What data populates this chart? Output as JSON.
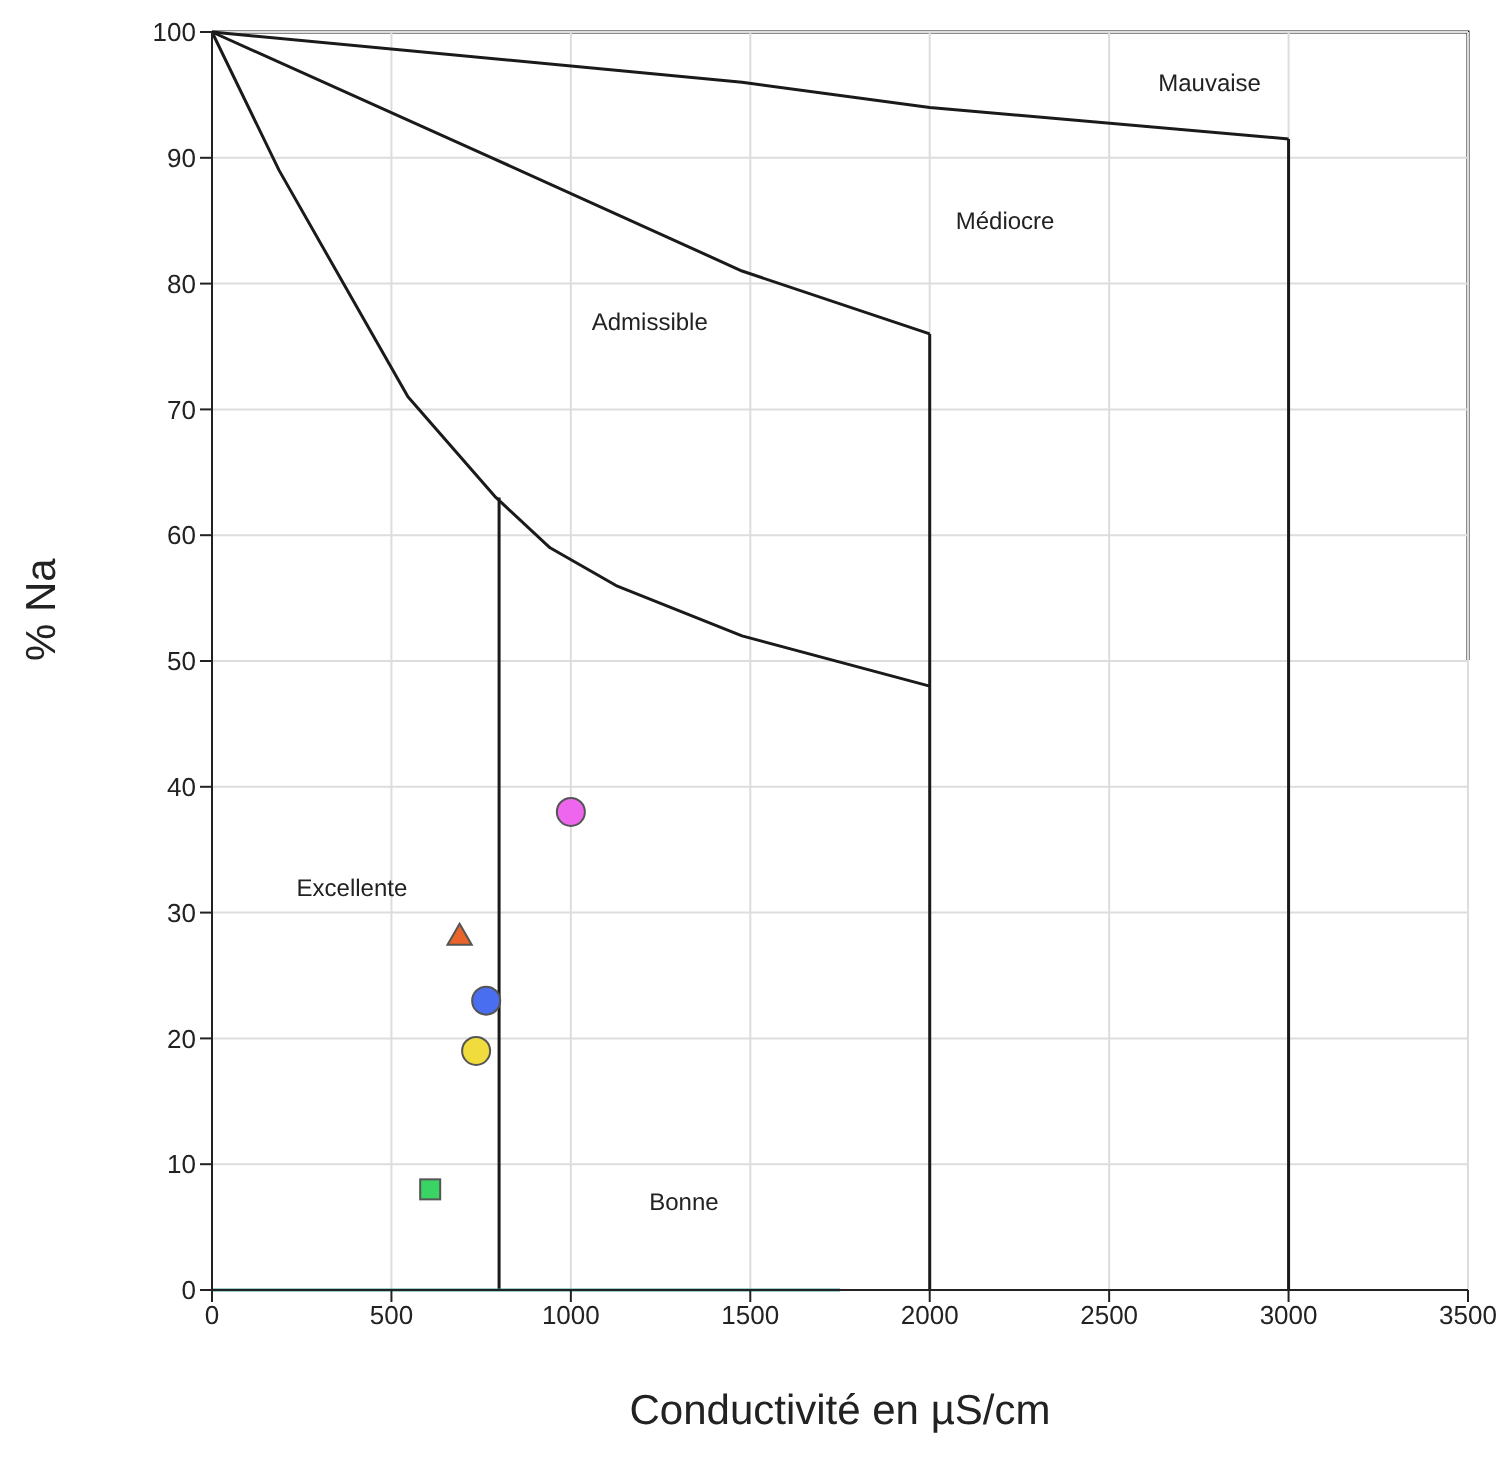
{
  "chart_data": {
    "type": "scatter",
    "xlabel": "Conductivité en µS/cm",
    "ylabel": "% Na",
    "xlim": [
      0,
      3500
    ],
    "xticks": [
      0,
      500,
      1000,
      1500,
      2000,
      2500,
      3000,
      3500
    ],
    "ylim": [
      0,
      100
    ],
    "yticks": [
      0,
      10,
      20,
      30,
      40,
      50,
      60,
      70,
      80,
      90,
      100
    ],
    "grid": true,
    "legend": false,
    "series": [
      {
        "type": "line",
        "color": "#1a1a1a",
        "marker": "none",
        "line_style": "solid",
        "x": [
          0,
          187,
          546,
          791,
          942,
          1126,
          1477,
          2000
        ],
        "values": [
          100,
          89,
          71,
          63,
          59,
          56,
          52,
          48
        ]
      },
      {
        "type": "line",
        "color": "#1a1a1a",
        "marker": "none",
        "line_style": "solid",
        "x": [
          0,
          780,
          1477,
          2000
        ],
        "values": [
          100,
          90,
          81,
          76
        ]
      },
      {
        "type": "line",
        "color": "#1a1a1a",
        "marker": "none",
        "line_style": "solid",
        "x": [
          0,
          1477,
          2000,
          3000
        ],
        "values": [
          100,
          96,
          94,
          91.5
        ]
      },
      {
        "type": "line",
        "color": "#1a1a1a",
        "marker": "none",
        "line_style": "solid",
        "x": [
          800,
          800
        ],
        "values": [
          0,
          63
        ]
      },
      {
        "type": "line",
        "color": "#1a1a1a",
        "marker": "none",
        "line_style": "solid",
        "x": [
          2000,
          2000
        ],
        "values": [
          0,
          76
        ]
      },
      {
        "type": "line",
        "color": "#1a1a1a",
        "marker": "none",
        "line_style": "solid",
        "x": [
          3000,
          3000
        ],
        "values": [
          0,
          91.5
        ]
      },
      {
        "type": "line",
        "color": "#3a9e9e",
        "marker": "none",
        "line_style": "solid",
        "x": [
          0,
          1750
        ],
        "values": [
          0,
          0
        ]
      },
      {
        "type": "scatter",
        "color": "#ee66ee",
        "marker": "circle",
        "x": [
          1000
        ],
        "values": [
          38
        ]
      },
      {
        "type": "scatter",
        "color": "#e8642a",
        "marker": "triangle",
        "x": [
          690
        ],
        "values": [
          28
        ]
      },
      {
        "type": "scatter",
        "color": "#4a6ef0",
        "x": [
          764
        ],
        "values": [
          23
        ]
      },
      {
        "type": "scatter",
        "color": "#f0dc3c",
        "x": [
          736
        ],
        "values": [
          19
        ]
      },
      {
        "type": "scatter",
        "color": "#3ad464",
        "marker": "square",
        "x": [
          608
        ],
        "values": [
          8
        ]
      }
    ],
    "annotations": [
      "Mauvaise",
      "Médiocre",
      "Admissible",
      "Excellente",
      "Bonne"
    ]
  }
}
